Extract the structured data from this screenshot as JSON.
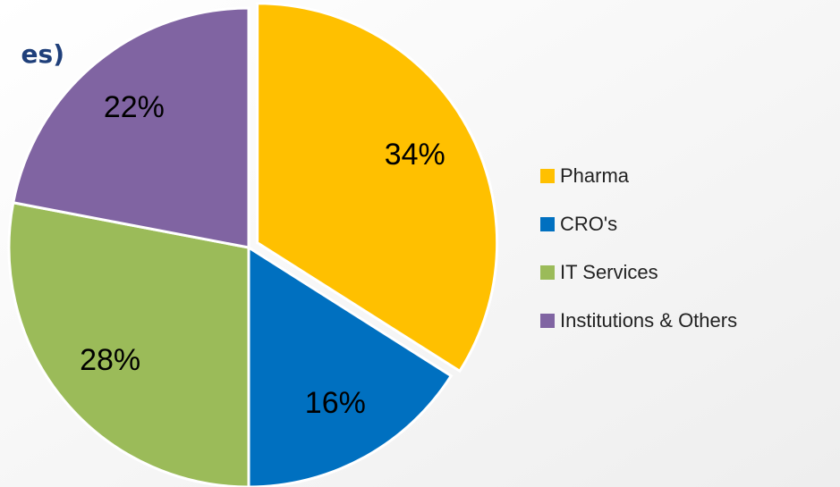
{
  "chart_data": {
    "type": "pie",
    "title": "es)",
    "categories": [
      "Pharma",
      "CRO's",
      "IT Services",
      "Institutions & Others"
    ],
    "values": [
      34,
      16,
      28,
      22
    ],
    "value_labels": [
      "34%",
      "16%",
      "28%",
      "22%"
    ],
    "colors": [
      "#ffc000",
      "#0070c0",
      "#9bbb59",
      "#8064a2"
    ],
    "legend": "right"
  }
}
